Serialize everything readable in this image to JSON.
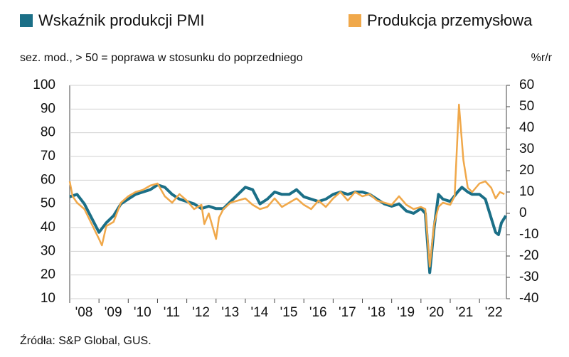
{
  "chart_data": {
    "type": "line",
    "subtitle": "sez. mod., > 50 = poprawa w stosunku do poprzedniego",
    "y2_label": "%r/r",
    "source": "Źródła: S&P Global, GUS.",
    "xlim": [
      2008,
      2022.92
    ],
    "xticks": [
      {
        "value": 2008,
        "label": "'08"
      },
      {
        "value": 2009,
        "label": "'09"
      },
      {
        "value": 2010,
        "label": "'10"
      },
      {
        "value": 2011,
        "label": "'11"
      },
      {
        "value": 2012,
        "label": "'12"
      },
      {
        "value": 2013,
        "label": "'13"
      },
      {
        "value": 2014,
        "label": "'14"
      },
      {
        "value": 2015,
        "label": "'15"
      },
      {
        "value": 2016,
        "label": "'16"
      },
      {
        "value": 2017,
        "label": "'17"
      },
      {
        "value": 2018,
        "label": "'18"
      },
      {
        "value": 2019,
        "label": "'19"
      },
      {
        "value": 2020,
        "label": "'20"
      },
      {
        "value": 2021,
        "label": "'21"
      },
      {
        "value": 2022,
        "label": "'22"
      }
    ],
    "ylim": [
      10,
      100
    ],
    "yticks": [
      10,
      20,
      30,
      40,
      50,
      60,
      70,
      80,
      90,
      100
    ],
    "y2lim": [
      -40,
      60
    ],
    "y2ticks": [
      -40,
      -30,
      -20,
      -10,
      0,
      10,
      20,
      30,
      40,
      50,
      60
    ],
    "grid": true,
    "series": [
      {
        "name": "Wskaźnik produkcji PMI",
        "color": "#1b6f87",
        "x": [
          2008.0,
          2008.25,
          2008.5,
          2008.75,
          2009.0,
          2009.25,
          2009.5,
          2009.75,
          2010.0,
          2010.25,
          2010.5,
          2010.75,
          2011.0,
          2011.25,
          2011.5,
          2011.75,
          2012.0,
          2012.25,
          2012.5,
          2012.75,
          2013.0,
          2013.25,
          2013.5,
          2013.75,
          2014.0,
          2014.25,
          2014.5,
          2014.75,
          2015.0,
          2015.25,
          2015.5,
          2015.75,
          2016.0,
          2016.25,
          2016.5,
          2016.75,
          2017.0,
          2017.25,
          2017.5,
          2017.75,
          2018.0,
          2018.25,
          2018.5,
          2018.75,
          2019.0,
          2019.25,
          2019.5,
          2019.75,
          2020.0,
          2020.15,
          2020.3,
          2020.45,
          2020.6,
          2020.75,
          2021.0,
          2021.25,
          2021.4,
          2021.6,
          2021.75,
          2022.0,
          2022.2,
          2022.4,
          2022.55,
          2022.65,
          2022.75,
          2022.9
        ],
        "values": [
          53,
          54,
          50,
          44,
          38,
          42,
          45,
          50,
          52,
          54,
          55,
          56,
          58,
          57,
          54,
          52,
          51,
          50,
          48,
          49,
          48,
          48,
          51,
          54,
          57,
          56,
          50,
          52,
          55,
          54,
          54,
          56,
          53,
          52,
          51,
          52,
          54,
          55,
          54,
          55,
          55,
          54,
          52,
          50,
          49,
          50,
          47,
          46,
          48,
          46,
          21,
          40,
          54,
          52,
          51,
          55,
          57,
          55,
          54,
          54,
          52,
          44,
          38,
          37,
          42,
          45
        ]
      },
      {
        "name": "Produkcja przemysłowa",
        "color": "#f0a84a",
        "axis": "y2",
        "x": [
          2008.0,
          2008.1,
          2008.25,
          2008.5,
          2008.75,
          2009.0,
          2009.1,
          2009.25,
          2009.5,
          2009.75,
          2010.0,
          2010.25,
          2010.5,
          2010.75,
          2011.0,
          2011.25,
          2011.5,
          2011.75,
          2012.0,
          2012.25,
          2012.5,
          2012.6,
          2012.75,
          2013.0,
          2013.1,
          2013.25,
          2013.5,
          2013.75,
          2014.0,
          2014.25,
          2014.5,
          2014.75,
          2015.0,
          2015.25,
          2015.5,
          2015.75,
          2016.0,
          2016.25,
          2016.5,
          2016.75,
          2017.0,
          2017.25,
          2017.5,
          2017.75,
          2018.0,
          2018.25,
          2018.5,
          2018.75,
          2019.0,
          2019.25,
          2019.5,
          2019.75,
          2020.0,
          2020.15,
          2020.3,
          2020.45,
          2020.6,
          2020.75,
          2021.0,
          2021.15,
          2021.3,
          2021.45,
          2021.6,
          2021.75,
          2022.0,
          2022.2,
          2022.4,
          2022.55,
          2022.7,
          2022.85
        ],
        "values": [
          15,
          8,
          5,
          2,
          -5,
          -12,
          -15,
          -6,
          -4,
          5,
          8,
          10,
          11,
          13,
          14,
          8,
          5,
          9,
          6,
          2,
          4,
          -5,
          0,
          -12,
          -2,
          2,
          5,
          6,
          7,
          4,
          2,
          3,
          7,
          3,
          5,
          7,
          4,
          2,
          6,
          3,
          7,
          10,
          6,
          10,
          8,
          9,
          6,
          5,
          4,
          8,
          4,
          2,
          3,
          2,
          -25,
          -5,
          3,
          5,
          4,
          8,
          51,
          25,
          12,
          10,
          14,
          15,
          12,
          7,
          10,
          9
        ]
      }
    ]
  }
}
